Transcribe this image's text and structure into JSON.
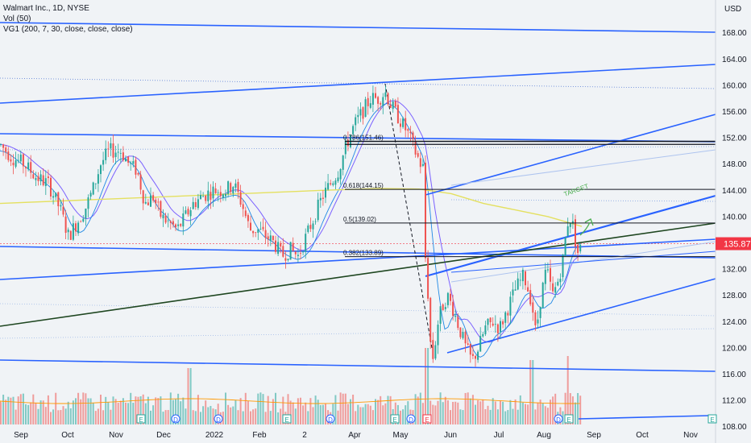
{
  "legend": {
    "title": "Walmart Inc., 1D, NYSE",
    "vol": "Vol (50)",
    "vg": "VG1 (200, 7, 30, close, close, close)"
  },
  "chart_data": {
    "type": "candlestick",
    "currency": "USD",
    "ylim": [
      105.5,
      173
    ],
    "y_ticks": [
      108,
      112,
      116,
      120,
      124,
      128,
      132,
      136,
      140,
      144,
      148,
      152,
      156,
      160,
      164,
      168
    ],
    "x_ticks": [
      "Sep",
      "Oct",
      "Nov",
      "Dec",
      "2022",
      "Feb",
      "2",
      "Apr",
      "May",
      "Jun",
      "Jul",
      "Aug",
      "Sep",
      "Oct",
      "Nov"
    ],
    "last_price": 135.87,
    "fib_levels": [
      {
        "ratio": "0.786",
        "price": 151.46,
        "label": "0.786(151.46)"
      },
      {
        "ratio": "0.618",
        "price": 144.15,
        "label": "0.618(144.15)"
      },
      {
        "ratio": "0.5",
        "price": 139.02,
        "label": "0.5(139.02)"
      },
      {
        "ratio": "0.382",
        "price": 133.89,
        "label": "0.382(133.89)"
      }
    ],
    "annotation": "TARGET",
    "event_markers": [
      "E",
      "D",
      "D",
      "E",
      "D",
      "E",
      "D",
      "E",
      "D",
      "E",
      "E",
      "E"
    ],
    "price_path": [
      [
        0,
        151
      ],
      [
        15,
        149
      ],
      [
        30,
        148
      ],
      [
        45,
        146
      ],
      [
        60,
        145
      ],
      [
        75,
        141
      ],
      [
        85,
        137
      ],
      [
        95,
        139
      ],
      [
        105,
        141
      ],
      [
        115,
        144
      ],
      [
        125,
        148
      ],
      [
        135,
        150
      ],
      [
        150,
        150
      ],
      [
        160,
        148
      ],
      [
        170,
        147
      ],
      [
        180,
        142
      ],
      [
        190,
        143
      ],
      [
        200,
        140
      ],
      [
        210,
        139
      ],
      [
        220,
        138
      ],
      [
        230,
        140
      ],
      [
        240,
        142
      ],
      [
        250,
        143
      ],
      [
        265,
        144
      ],
      [
        280,
        144
      ],
      [
        290,
        145
      ],
      [
        300,
        142
      ],
      [
        310,
        138
      ],
      [
        320,
        138
      ],
      [
        330,
        137
      ],
      [
        340,
        136
      ],
      [
        350,
        134
      ],
      [
        360,
        135
      ],
      [
        370,
        134
      ],
      [
        380,
        137
      ],
      [
        390,
        140
      ],
      [
        400,
        143
      ],
      [
        410,
        145
      ],
      [
        420,
        147
      ],
      [
        430,
        151
      ],
      [
        440,
        154
      ],
      [
        450,
        156
      ],
      [
        460,
        158
      ],
      [
        470,
        158
      ],
      [
        478,
        159
      ],
      [
        485,
        157
      ],
      [
        495,
        155
      ],
      [
        505,
        153
      ],
      [
        515,
        150
      ],
      [
        522,
        148
      ],
      [
        527,
        147
      ],
      [
        530,
        131
      ],
      [
        534,
        121
      ],
      [
        538,
        118
      ],
      [
        542,
        123
      ],
      [
        548,
        126
      ],
      [
        555,
        128
      ],
      [
        562,
        126
      ],
      [
        570,
        123
      ],
      [
        578,
        120
      ],
      [
        586,
        118
      ],
      [
        594,
        120
      ],
      [
        602,
        123
      ],
      [
        612,
        124
      ],
      [
        620,
        123
      ],
      [
        630,
        126
      ],
      [
        640,
        129
      ],
      [
        650,
        131
      ],
      [
        660,
        127
      ],
      [
        665,
        122
      ],
      [
        670,
        127
      ],
      [
        678,
        132
      ],
      [
        686,
        128
      ],
      [
        692,
        130
      ],
      [
        698,
        133
      ],
      [
        704,
        139
      ],
      [
        709,
        140
      ],
      [
        713,
        137
      ],
      [
        718,
        134
      ],
      [
        722,
        136
      ]
    ]
  }
}
